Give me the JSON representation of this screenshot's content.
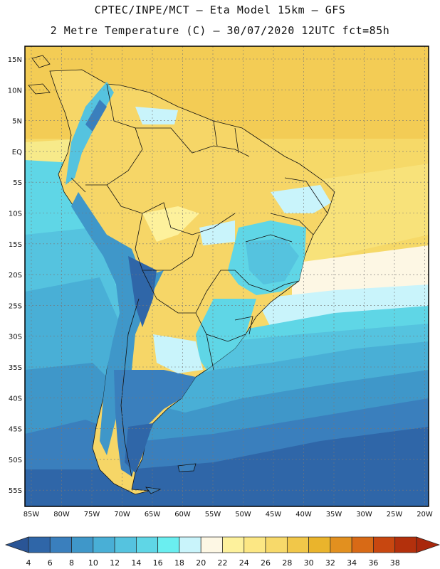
{
  "header": {
    "line1": "CPTEC/INPE/MCT –  Eta Model 15km – GFS",
    "line2": "2 Metre Temperature (C) – 30/07/2020 12UTC fct=85h"
  },
  "axes": {
    "lat_labels": [
      "15N",
      "10N",
      "5N",
      "EQ",
      "5S",
      "10S",
      "15S",
      "20S",
      "25S",
      "30S",
      "35S",
      "40S",
      "45S",
      "50S",
      "55S"
    ],
    "lon_labels": [
      "85W",
      "80W",
      "75W",
      "70W",
      "65W",
      "60W",
      "55W",
      "50W",
      "45W",
      "40W",
      "35W",
      "30W",
      "25W",
      "20W"
    ]
  },
  "legend": {
    "labels": [
      "4",
      "6",
      "8",
      "10",
      "12",
      "14",
      "16",
      "18",
      "20",
      "22",
      "24",
      "26",
      "28",
      "30",
      "32",
      "34",
      "36",
      "38"
    ],
    "colors": [
      "#2f66a8",
      "#3a7fbd",
      "#3f97c9",
      "#49afd6",
      "#55c3df",
      "#5fd6e6",
      "#6aeef0",
      "#c9f4fb",
      "#fdf7e4",
      "#fdf19c",
      "#fce784",
      "#f7d96a",
      "#f1c749",
      "#eab42c",
      "#e2901f",
      "#d86a16",
      "#c84710",
      "#b3300c"
    ],
    "left_arrow_color": "#2a5596",
    "right_arrow_color": "#a9280c"
  }
}
